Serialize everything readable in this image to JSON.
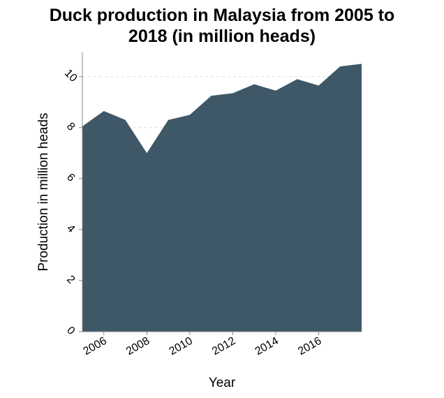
{
  "chart_data": {
    "type": "area",
    "title_lines": [
      "Duck production in Malaysia from 2005 to",
      "2018 (in million heads)"
    ],
    "xlabel": "Year",
    "ylabel": "Production in million heads",
    "x": [
      2005,
      2006,
      2007,
      2008,
      2009,
      2010,
      2011,
      2012,
      2013,
      2014,
      2015,
      2016,
      2017,
      2018
    ],
    "values": [
      8.05,
      8.65,
      8.3,
      7.0,
      8.3,
      8.5,
      9.25,
      9.35,
      9.7,
      9.45,
      9.9,
      9.65,
      10.4,
      10.5
    ],
    "xlim": [
      2005,
      2018
    ],
    "ylim": [
      0,
      10.95
    ],
    "x_ticks": [
      2006,
      2008,
      2010,
      2012,
      2014,
      2016
    ],
    "x_tick_labels": [
      "2006",
      "2008",
      "2010",
      "2012",
      "2014",
      "2016"
    ],
    "y_ticks": [
      0,
      2,
      4,
      6,
      8,
      10
    ],
    "y_tick_labels": [
      "0",
      "2",
      "4",
      "6",
      "8",
      "10"
    ],
    "grid": true,
    "fill_color": "#3f5867",
    "grid_color": "#dddddd",
    "axis_color": "#888888"
  }
}
